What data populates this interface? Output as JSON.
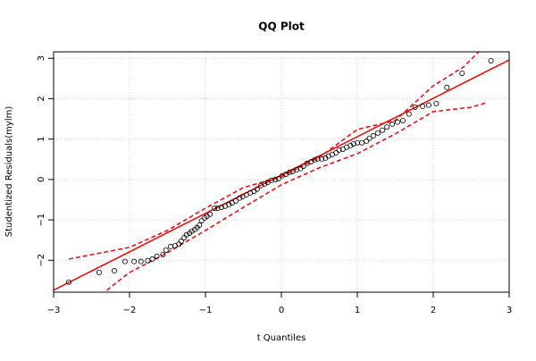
{
  "chart_data": {
    "type": "scatter",
    "title": "QQ Plot",
    "x_label": "t Quantiles",
    "y_label": "Studentized Residuals(mylm)",
    "xlim": [
      -3,
      3
    ],
    "ylim": [
      -2.79,
      3.16
    ],
    "xticks": [
      {
        "value": -3,
        "label": "−3"
      },
      {
        "value": -2,
        "label": "−2"
      },
      {
        "value": -1,
        "label": "−1"
      },
      0,
      1,
      2,
      3
    ],
    "yticks": [
      {
        "value": -2,
        "label": "−2"
      },
      {
        "value": -1,
        "label": "−1"
      },
      0,
      1,
      2,
      3
    ],
    "grid": true,
    "point_color": "#000000",
    "x": [
      -2.8,
      -2.4,
      -2.2,
      -2.06,
      -1.94,
      -1.85,
      -1.76,
      -1.7,
      -1.64,
      -1.56,
      -1.52,
      -1.46,
      -1.4,
      -1.35,
      -1.32,
      -1.28,
      -1.25,
      -1.21,
      -1.18,
      -1.14,
      -1.11,
      -1.08,
      -1.05,
      -1.01,
      -0.98,
      -0.94,
      -0.88,
      -0.84,
      -0.79,
      -0.74,
      -0.69,
      -0.65,
      -0.6,
      -0.55,
      -0.51,
      -0.46,
      -0.41,
      -0.36,
      -0.32,
      -0.27,
      -0.22,
      -0.18,
      -0.13,
      -0.08,
      -0.04,
      0.01,
      0.06,
      0.11,
      0.15,
      0.2,
      0.25,
      0.29,
      0.34,
      0.39,
      0.44,
      0.48,
      0.53,
      0.58,
      0.62,
      0.67,
      0.72,
      0.76,
      0.81,
      0.86,
      0.91,
      0.95,
      1.0,
      1.06,
      1.12,
      1.16,
      1.21,
      1.27,
      1.33,
      1.39,
      1.46,
      1.53,
      1.6,
      1.68,
      1.76,
      1.86,
      1.94,
      2.04,
      2.18,
      2.38,
      2.76
    ],
    "values": [
      -2.54,
      -2.3,
      -2.26,
      -2.03,
      -2.03,
      -2.03,
      -2.01,
      -1.97,
      -1.9,
      -1.86,
      -1.75,
      -1.66,
      -1.64,
      -1.6,
      -1.53,
      -1.44,
      -1.37,
      -1.33,
      -1.28,
      -1.24,
      -1.19,
      -1.13,
      -1.02,
      -0.95,
      -0.91,
      -0.86,
      -0.71,
      -0.71,
      -0.69,
      -0.66,
      -0.62,
      -0.58,
      -0.53,
      -0.46,
      -0.42,
      -0.38,
      -0.33,
      -0.29,
      -0.24,
      -0.15,
      -0.11,
      -0.07,
      -0.02,
      0,
      0.02,
      0.09,
      0.13,
      0.18,
      0.2,
      0.24,
      0.27,
      0.33,
      0.4,
      0.44,
      0.49,
      0.51,
      0.51,
      0.53,
      0.58,
      0.62,
      0.66,
      0.73,
      0.75,
      0.8,
      0.84,
      0.88,
      0.91,
      0.91,
      0.95,
      1.02,
      1.08,
      1.15,
      1.22,
      1.3,
      1.37,
      1.42,
      1.46,
      1.62,
      1.79,
      1.81,
      1.84,
      1.88,
      2.28,
      2.63,
      2.94
    ],
    "lines": [
      {
        "color": "#ff0000",
        "dashed": false,
        "x": [
          -3,
          3
        ],
        "values": [
          -2.74,
          2.96
        ]
      },
      {
        "color": "#ff0000",
        "dashed": true,
        "x": [
          -2.8,
          -2,
          -1.5,
          -1,
          -0.5,
          0,
          0.5,
          1,
          1.5,
          2,
          2.4,
          2.6
        ],
        "values": [
          -1.97,
          -1.68,
          -1.26,
          -0.71,
          -0.2,
          0.07,
          0.55,
          1.24,
          1.46,
          2.32,
          2.79,
          3.16
        ]
      },
      {
        "color": "#ff0000",
        "dashed": true,
        "x": [
          -2.3,
          -2,
          -1.5,
          -1,
          -0.5,
          0,
          0.5,
          1,
          1.5,
          2,
          2.5,
          2.7
        ],
        "values": [
          -2.74,
          -2.3,
          -1.81,
          -1.26,
          -0.69,
          -0.13,
          0.29,
          0.64,
          1.13,
          1.68,
          1.79,
          1.9
        ]
      }
    ]
  }
}
